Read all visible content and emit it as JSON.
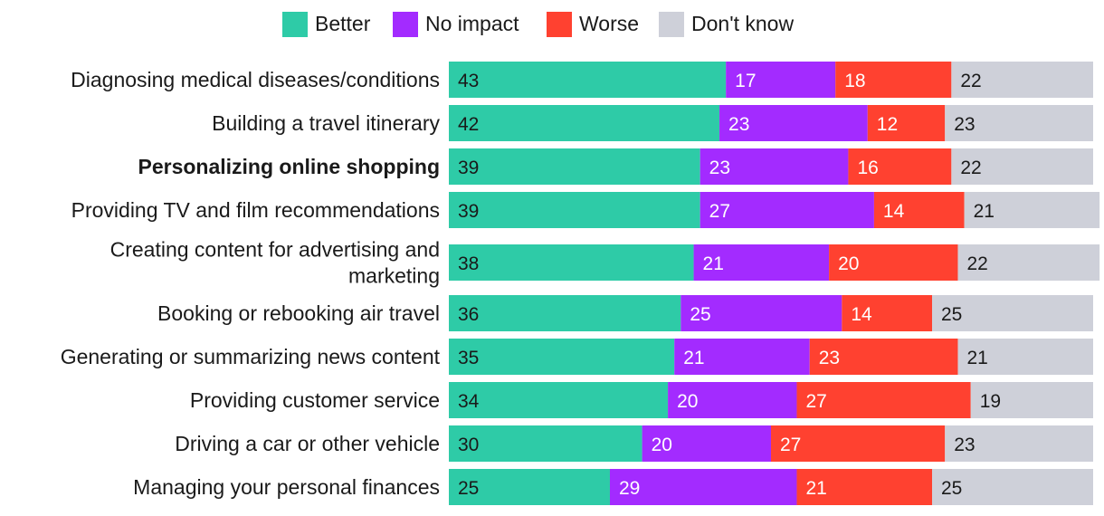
{
  "chart_data": {
    "type": "bar",
    "orientation": "horizontal",
    "stacked": true,
    "title": "",
    "xlabel": "",
    "ylabel": "",
    "xlim": [
      0,
      100
    ],
    "legend_position": "top",
    "categories": [
      {
        "label": "Diagnosing medical diseases/conditions",
        "lines": [
          "Diagnosing medical diseases/conditions"
        ],
        "bold": false
      },
      {
        "label": "Building a travel itinerary",
        "lines": [
          "Building a travel itinerary"
        ],
        "bold": false
      },
      {
        "label": "Personalizing online shopping",
        "lines": [
          "Personalizing online shopping"
        ],
        "bold": true
      },
      {
        "label": "Providing TV and film recommendations",
        "lines": [
          "Providing TV and film recommendations"
        ],
        "bold": false
      },
      {
        "label": "Creating content for advertising and marketing",
        "lines": [
          "Creating content for advertising and",
          "marketing"
        ],
        "bold": false
      },
      {
        "label": "Booking or rebooking air travel",
        "lines": [
          "Booking or rebooking air travel"
        ],
        "bold": false
      },
      {
        "label": "Generating or summarizing news content",
        "lines": [
          "Generating or summarizing news content"
        ],
        "bold": false
      },
      {
        "label": "Providing customer service",
        "lines": [
          "Providing customer service"
        ],
        "bold": false
      },
      {
        "label": "Driving a car or other vehicle",
        "lines": [
          "Driving a car or other vehicle"
        ],
        "bold": false
      },
      {
        "label": "Managing your personal finances",
        "lines": [
          "Managing your personal finances"
        ],
        "bold": false
      }
    ],
    "series": [
      {
        "name": "Better",
        "color": "#2ecba7",
        "label_color": "#1a1a1a",
        "values": [
          43,
          42,
          39,
          39,
          38,
          36,
          35,
          34,
          30,
          25
        ]
      },
      {
        "name": "No impact",
        "color": "#a32bff",
        "label_color": "#ffffff",
        "values": [
          17,
          23,
          23,
          27,
          21,
          25,
          21,
          20,
          20,
          29
        ]
      },
      {
        "name": "Worse",
        "color": "#ff4130",
        "label_color": "#ffffff",
        "values": [
          18,
          12,
          16,
          14,
          20,
          14,
          23,
          27,
          27,
          21
        ]
      },
      {
        "name": "Don't know",
        "color": "#ced0d9",
        "label_color": "#1a1a1a",
        "values": [
          22,
          23,
          22,
          21,
          22,
          25,
          21,
          19,
          23,
          25
        ]
      }
    ]
  }
}
